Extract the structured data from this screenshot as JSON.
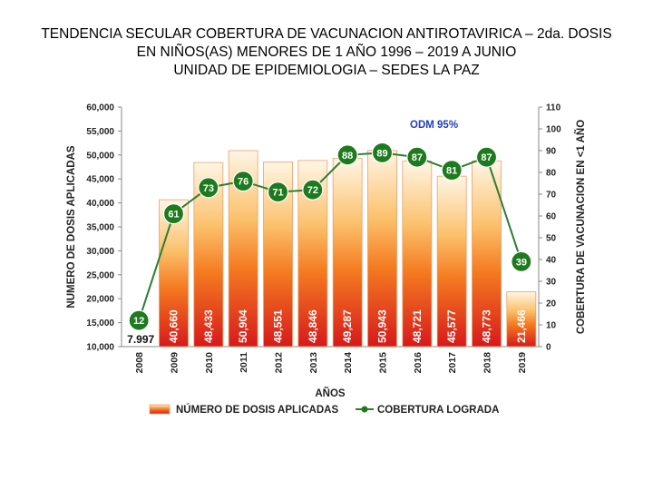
{
  "title": {
    "line1": "TENDENCIA SECULAR COBERTURA DE VACUNACION ANTIROTAVIRICA – 2da. DOSIS",
    "line2": "EN NIÑOS(AS) MENORES DE 1 AÑO 1996 – 2019 A JUNIO",
    "line3": "UNIDAD DE EPIDEMIOLOGIA – SEDES LA PAZ"
  },
  "chart_data": {
    "type": "bar",
    "categories": [
      "2008",
      "2009",
      "2010",
      "2011",
      "2012",
      "2013",
      "2014",
      "2015",
      "2016",
      "2017",
      "2018",
      "2019"
    ],
    "series": [
      {
        "name": "NÚMERO DE DOSIS APLICADAS",
        "type": "bar",
        "axis": "left",
        "values": [
          7997,
          40660,
          48433,
          50904,
          48551,
          48846,
          49287,
          50943,
          48721,
          45577,
          48773,
          21466
        ],
        "labels": [
          "7.997",
          "40,660",
          "48,433",
          "50,904",
          "48,551",
          "48,846",
          "49,287",
          "50,943",
          "48,721",
          "45,577",
          "48,773",
          "21,466"
        ]
      },
      {
        "name": "COBERTURA LOGRADA",
        "type": "line",
        "axis": "right",
        "values": [
          12,
          61,
          73,
          76,
          71,
          72,
          88,
          89,
          87,
          81,
          87,
          39
        ],
        "labels": [
          "12",
          "61",
          "73",
          "76",
          "71",
          "72",
          "88",
          "89",
          "87",
          "81",
          "87",
          "39"
        ]
      }
    ],
    "xlabel": "AÑOS",
    "ylabel": "NUMERO DE DOSIS APLICADAS",
    "y2label": "COBERTURA DE VACUNACION EN <1 AÑO",
    "ylim": [
      10000,
      60000
    ],
    "y2lim": [
      0,
      110
    ],
    "yticks": [
      "60,000",
      "55,000",
      "50,000",
      "45,000",
      "40,000",
      "35,000",
      "30,000",
      "25,000",
      "20,000",
      "15,000",
      "10,000"
    ],
    "y2ticks": [
      "110",
      "100",
      "90",
      "80",
      "70",
      "60",
      "50",
      "40",
      "30",
      "20",
      "10",
      "0"
    ],
    "annotation": "ODM 95%",
    "grid": false,
    "legend_position": "bottom",
    "colors": {
      "bar_top": "#fff4e0",
      "bar_mid": "#f7941d",
      "bar_bottom": "#d7191c",
      "line": "#2e7d32",
      "marker": "#1e7a1e",
      "annotation": "#1f3fbf"
    }
  }
}
